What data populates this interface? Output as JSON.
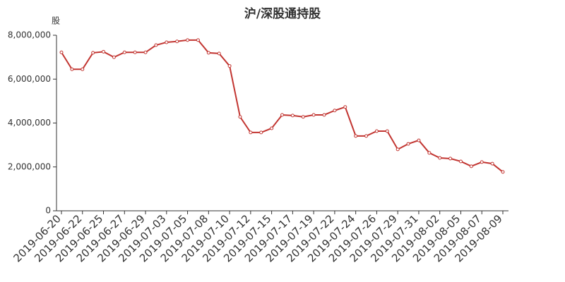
{
  "chart_data": {
    "type": "line",
    "title": "沪/深股通持股",
    "y_label": "股",
    "categories": [
      "2019-06-20",
      null,
      "2019-06-22",
      null,
      "2019-06-25",
      null,
      "2019-06-27",
      null,
      "2019-06-29",
      null,
      "2019-07-03",
      null,
      "2019-07-05",
      null,
      "2019-07-08",
      null,
      "2019-07-10",
      null,
      "2019-07-12",
      null,
      "2019-07-15",
      null,
      "2019-07-17",
      null,
      "2019-07-19",
      null,
      "2019-07-22",
      null,
      "2019-07-24",
      null,
      "2019-07-26",
      null,
      "2019-07-29",
      null,
      "2019-07-31",
      null,
      "2019-08-02",
      null,
      "2019-08-05",
      null,
      "2019-08-07",
      null,
      "2019-08-09"
    ],
    "series": [
      {
        "color": "#c23531",
        "values": [
          7220000,
          6450000,
          6450000,
          7200000,
          7250000,
          7000000,
          7220000,
          7220000,
          7220000,
          7550000,
          7680000,
          7720000,
          7780000,
          7780000,
          7200000,
          7170000,
          6600000,
          4280000,
          3570000,
          3570000,
          3760000,
          4370000,
          4340000,
          4280000,
          4370000,
          4370000,
          4570000,
          4730000,
          3410000,
          3410000,
          3630000,
          3630000,
          2800000,
          3050000,
          3210000,
          2640000,
          2410000,
          2380000,
          2250000,
          2030000,
          2220000,
          2150000,
          1770000
        ]
      }
    ],
    "ylim": [
      0,
      8000000
    ],
    "yticks": [
      0,
      {
        "value": 2000000,
        "label": "2,000,000"
      },
      {
        "value": 4000000,
        "label": "4,000,000"
      },
      {
        "value": 6000000,
        "label": "6,000,000"
      },
      {
        "value": 8000000,
        "label": "8,000,000"
      }
    ]
  }
}
